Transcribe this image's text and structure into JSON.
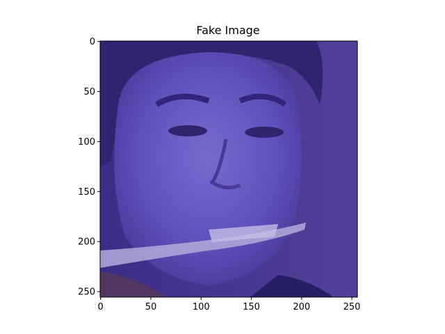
{
  "figure": {
    "title": "Fake Image",
    "image_description_icon": "face-image",
    "tint_color": "#3f2f9a",
    "background_color": "#4b3a8f"
  },
  "chart_data": {
    "type": "heatmap",
    "title": "Fake Image",
    "xlabel": "",
    "ylabel": "",
    "xlim": [
      0,
      255
    ],
    "ylim": [
      255,
      0
    ],
    "x_ticks": [
      0,
      50,
      100,
      150,
      200,
      250
    ],
    "y_ticks": [
      0,
      50,
      100,
      150,
      200,
      250
    ],
    "x_tick_labels": [
      "0",
      "50",
      "100",
      "150",
      "200",
      "250"
    ],
    "y_tick_labels": [
      "0",
      "50",
      "100",
      "150",
      "200",
      "250"
    ],
    "grid": false,
    "legend": "none"
  }
}
